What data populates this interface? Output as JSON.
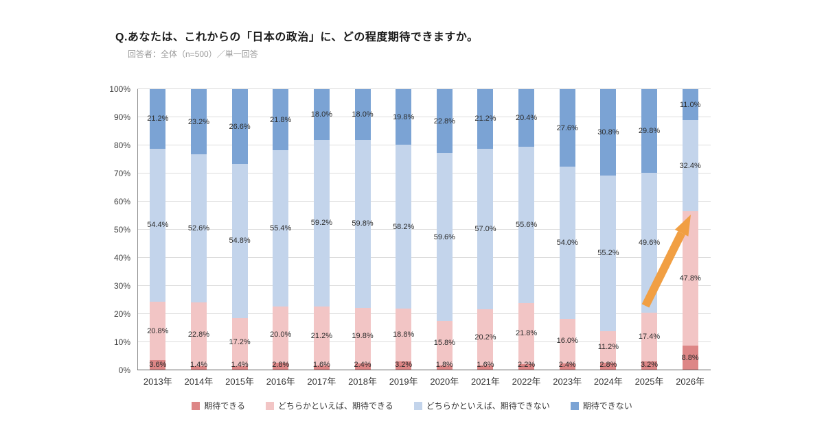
{
  "header": {
    "title": "Q.あなたは、これからの「日本の政治」に、どの程度期待できますか。",
    "subtitle": "回答者：全体（n=500）／単一回答"
  },
  "chart_data": {
    "type": "bar",
    "variant": "100-percent-stacked-column",
    "title": "Q.あなたは、これからの「日本の政治」に、どの程度期待できますか。",
    "categories": [
      "2013年",
      "2014年",
      "2015年",
      "2016年",
      "2017年",
      "2018年",
      "2019年",
      "2020年",
      "2021年",
      "2022年",
      "2023年",
      "2024年",
      "2025年",
      "2026年"
    ],
    "series": [
      {
        "name": "期待できる",
        "color": "#dd8686",
        "values": [
          3.6,
          1.4,
          1.4,
          2.8,
          1.6,
          2.4,
          3.2,
          1.8,
          1.6,
          2.2,
          2.4,
          2.8,
          3.2,
          8.8
        ]
      },
      {
        "name": "どちらかといえば、期待できる",
        "color": "#f2c5c5",
        "values": [
          20.8,
          22.8,
          17.2,
          20.0,
          21.2,
          19.8,
          18.8,
          15.8,
          20.2,
          21.8,
          16.0,
          11.2,
          17.4,
          47.8
        ]
      },
      {
        "name": "どちらかといえば、期待できない",
        "color": "#c3d4eb",
        "values": [
          54.4,
          52.6,
          54.8,
          55.4,
          59.2,
          59.8,
          58.2,
          59.6,
          57.0,
          55.6,
          54.0,
          55.2,
          49.6,
          32.4
        ]
      },
      {
        "name": "期待できない",
        "color": "#7ba3d4",
        "values": [
          21.2,
          23.2,
          26.6,
          21.8,
          18.0,
          18.0,
          19.8,
          22.8,
          21.2,
          20.4,
          27.6,
          30.8,
          29.8,
          11.0
        ]
      }
    ],
    "ylim": [
      0,
      100
    ],
    "ytick_step": 10,
    "ytick_suffix": "%",
    "grid": true,
    "legend_position": "bottom",
    "value_label_format": "one-decimal-percent",
    "annotation": {
      "type": "arrow-up-right",
      "color": "#f19f43"
    }
  }
}
